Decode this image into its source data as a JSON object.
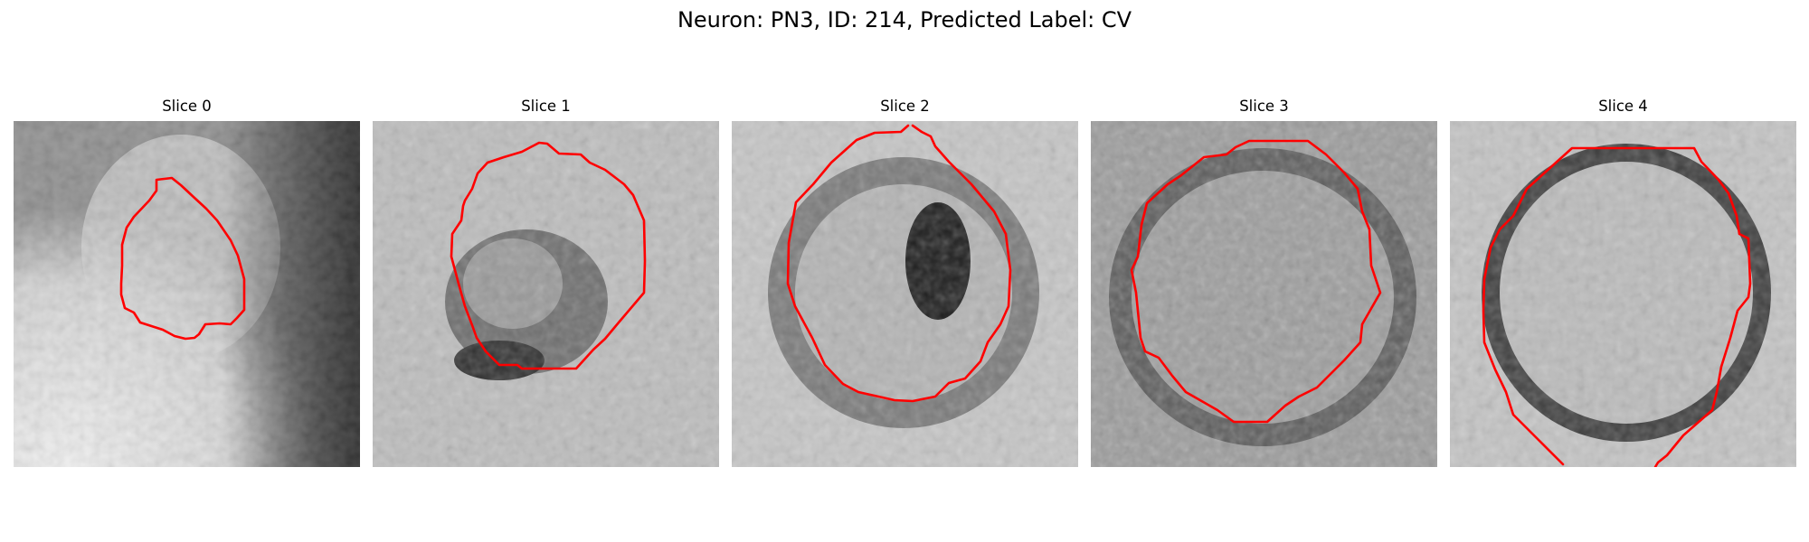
{
  "figure": {
    "title": "Neuron: PN3, ID: 214, Predicted Label: CV",
    "contour_color": "#ff0000"
  },
  "panels": [
    {
      "title": "Slice 0"
    },
    {
      "title": "Slice 1"
    },
    {
      "title": "Slice 2"
    },
    {
      "title": "Slice 3"
    },
    {
      "title": "Slice 4"
    }
  ]
}
